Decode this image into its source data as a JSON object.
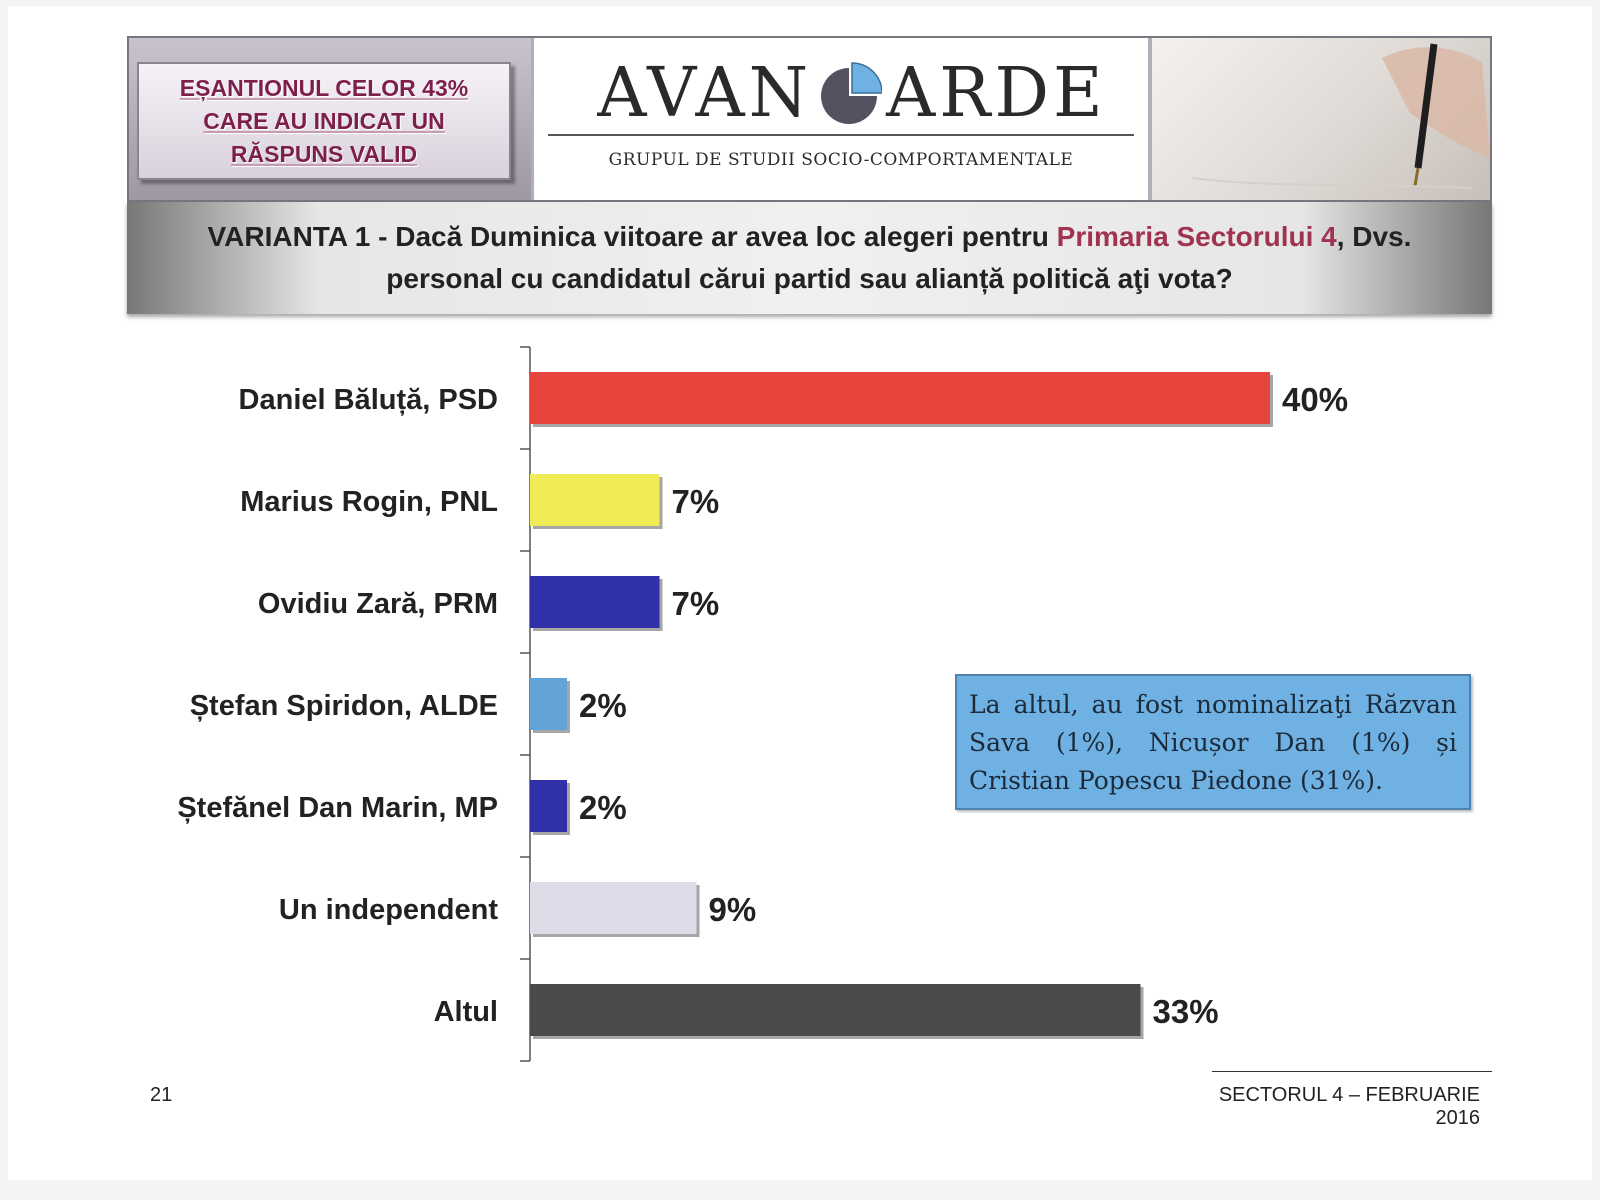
{
  "header": {
    "sample_note": "EȘANTIONUL CELOR 43% CARE AU INDICAT UN RĂSPUNS VALID",
    "logo_left": "AVAN",
    "logo_right": "ARDE",
    "logo_subtitle": "GRUPUL DE STUDII SOCIO-COMPORTAMENTALE"
  },
  "question": {
    "prefix": "VARIANTA 1 - Dacă Duminica viitoare ar avea loc alegeri pentru ",
    "highlight": "Primaria Sectorului 4",
    "suffix": ", Dvs. personal cu candidatul cărui partid sau alianță politică aţi vota?"
  },
  "note": "La altul, au fost nominalizaţi Răzvan Sava (1%), Nicușor Dan (1%) și Cristian Popescu Piedone (31%).",
  "footer": {
    "page_number": "21",
    "label": "SECTORUL 4 – FEBRUARIE 2016"
  },
  "colors": {
    "psd": "#e8443e",
    "pnl": "#efec55",
    "prm": "#3030a8",
    "alde": "#62a4d8",
    "mp": "#3030a8",
    "independent": "#dcdde8",
    "altul": "#4a4a4a",
    "note_bg": "#6fb1e2",
    "question_highlight": "#a0334f"
  },
  "chart_data": {
    "type": "bar",
    "orientation": "horizontal",
    "categories": [
      "Daniel Băluță, PSD",
      "Marius Rogin, PNL",
      "Ovidiu Zară, PRM",
      "Ștefan Spiridon, ALDE",
      "Ștefănel Dan Marin, MP",
      "Un independent",
      "Altul"
    ],
    "values": [
      40,
      7,
      7,
      2,
      2,
      9,
      33
    ],
    "value_labels": [
      "40%",
      "7%",
      "7%",
      "2%",
      "2%",
      "9%",
      "33%"
    ],
    "unit": "%",
    "xlim": [
      0,
      45
    ],
    "grid": false,
    "legend": "none"
  }
}
